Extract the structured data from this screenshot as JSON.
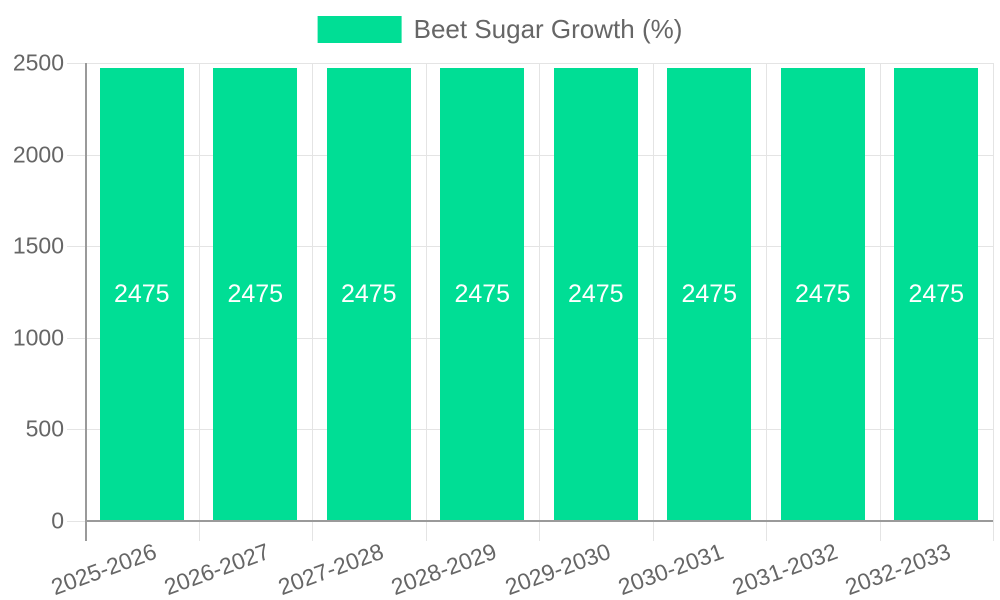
{
  "chart_data": {
    "type": "bar",
    "title": "",
    "legend": {
      "position": "top-center",
      "items": [
        {
          "label": "Beet Sugar Growth (%)",
          "color": "#00DE95"
        }
      ]
    },
    "categories": [
      "2025-2026",
      "2026-2027",
      "2027-2028",
      "2028-2029",
      "2029-2030",
      "2030-2031",
      "2031-2032",
      "2032-2033"
    ],
    "series": [
      {
        "name": "Beet Sugar Growth (%)",
        "values": [
          2475,
          2475,
          2475,
          2475,
          2475,
          2475,
          2475,
          2475
        ]
      }
    ],
    "bar_value_labels": [
      "2475",
      "2475",
      "2475",
      "2475",
      "2475",
      "2475",
      "2475",
      "2475"
    ],
    "ylim": [
      0,
      2500
    ],
    "yticks": [
      0,
      500,
      1000,
      1500,
      2000,
      2500
    ],
    "ytick_labels": [
      "0",
      "500",
      "1000",
      "1500",
      "2000",
      "2500"
    ],
    "grid": true,
    "colors": {
      "bar": "#00DE95",
      "grid": "#e4e4e4",
      "axis": "#9a9a9a",
      "tick_text": "#666666",
      "data_label": "#ffffff",
      "legend_text": "#666666",
      "background": "#ffffff"
    }
  }
}
